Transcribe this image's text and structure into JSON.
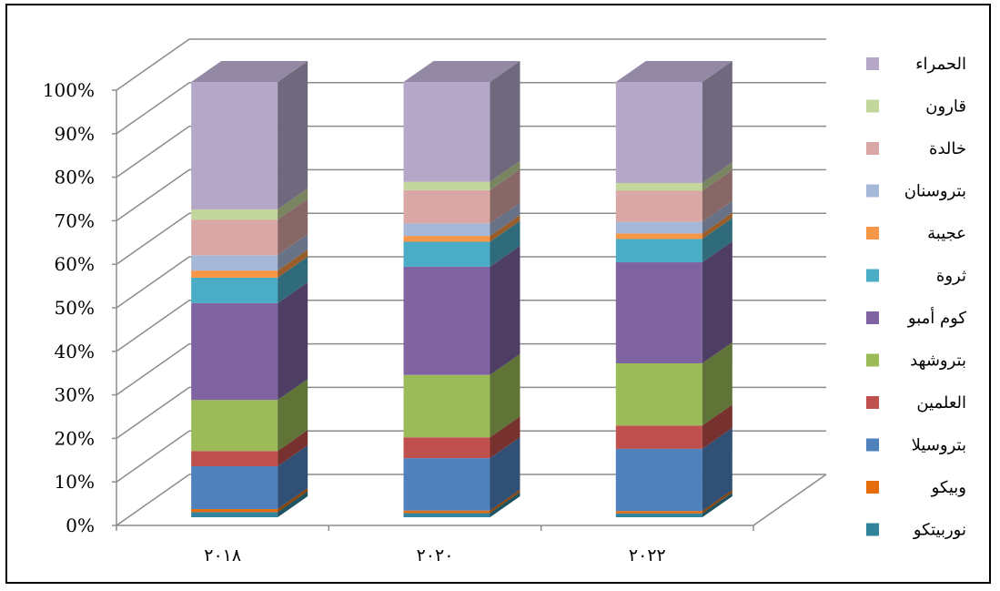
{
  "chart_data": {
    "type": "bar",
    "stacked": "percent",
    "three_d": true,
    "categories": [
      "٢٠١٨",
      "٢٠٢٠",
      "٢٠٢٢"
    ],
    "y_ticks": [
      "0%",
      "10%",
      "20%",
      "30%",
      "40%",
      "50%",
      "60%",
      "70%",
      "80%",
      "90%",
      "100%"
    ],
    "ylim": [
      0,
      100
    ],
    "grid": true,
    "legend_position": "right",
    "series": [
      {
        "name": "نوربيتكو",
        "color": "#31849B",
        "values": [
          0.5,
          0.5,
          0.5
        ]
      },
      {
        "name": "وبيكو",
        "color": "#E46C0A",
        "values": [
          0.3,
          0.3,
          0.3
        ]
      },
      {
        "name": "بتروسيلا",
        "color": "#4F81BD",
        "values": [
          4.2,
          6.3,
          8.0
        ]
      },
      {
        "name": "العلمين",
        "color": "#C0504D",
        "values": [
          1.5,
          2.5,
          3.0
        ]
      },
      {
        "name": "بتروشهد",
        "color": "#9BBB59",
        "values": [
          5.0,
          7.5,
          8.0
        ]
      },
      {
        "name": "كوم أمبو",
        "color": "#8064A2",
        "values": [
          9.5,
          13.0,
          13.0
        ]
      },
      {
        "name": "ثروة",
        "color": "#4BACC6",
        "values": [
          2.5,
          3.0,
          3.0
        ]
      },
      {
        "name": "عجيبة",
        "color": "#F79646",
        "values": [
          0.7,
          0.7,
          0.7
        ]
      },
      {
        "name": "بتروسنان",
        "color": "#A6B8D8",
        "values": [
          1.5,
          1.5,
          1.5
        ]
      },
      {
        "name": "خالدة",
        "color": "#D9A8A6",
        "values": [
          3.5,
          4.0,
          4.0
        ]
      },
      {
        "name": "قارون",
        "color": "#C3D69B",
        "values": [
          1.0,
          1.0,
          1.0
        ]
      },
      {
        "name": "الحمراء",
        "color": "#B4A7C8",
        "values": [
          12.5,
          12.0,
          13.0
        ]
      }
    ],
    "note": ""
  }
}
